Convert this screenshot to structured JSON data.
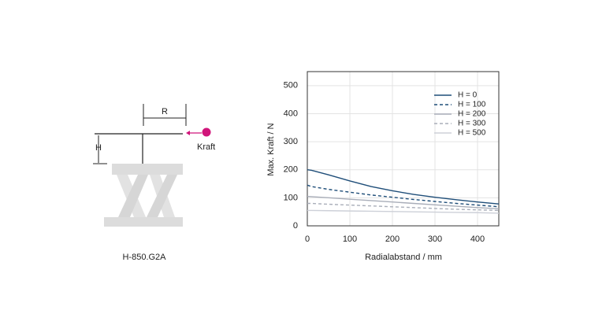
{
  "diagram": {
    "r_label": "R",
    "h_label": "H",
    "force_label": "Kraft",
    "caption": "H-850.G2A"
  },
  "chart_data": {
    "type": "line",
    "y_label": "Max. Kraft / N",
    "x_label": "Radialabstand / mm",
    "x": [
      0,
      10,
      50,
      100,
      150,
      200,
      250,
      300,
      350,
      400,
      450
    ],
    "series": [
      {
        "name": "H = 0",
        "color": "#1f4e79",
        "dash": false,
        "values": [
          200,
          198,
          182,
          160,
          140,
          125,
          112,
          102,
          93,
          85,
          78
        ]
      },
      {
        "name": "H = 100",
        "color": "#1f4e79",
        "dash": true,
        "values": [
          145,
          140,
          130,
          120,
          110,
          102,
          94,
          87,
          80,
          74,
          68
        ]
      },
      {
        "name": "H = 200",
        "color": "#a9aeb9",
        "dash": false,
        "values": [
          105,
          104,
          100,
          95,
          90,
          85,
          80,
          75,
          70,
          65,
          61
        ]
      },
      {
        "name": "H = 300",
        "color": "#a9aeb9",
        "dash": true,
        "values": [
          80,
          80,
          77,
          74,
          71,
          68,
          65,
          62,
          59,
          57,
          55
        ]
      },
      {
        "name": "H = 500",
        "color": "#cdd0d8",
        "dash": false,
        "values": [
          55,
          55,
          54,
          53,
          52,
          51,
          50,
          49,
          48,
          47,
          45
        ]
      }
    ],
    "xlim": [
      0,
      450
    ],
    "xticks": [
      0,
      100,
      200,
      300,
      400
    ],
    "ylim": [
      0,
      550
    ],
    "yticks": [
      0,
      100,
      200,
      300,
      400,
      500
    ],
    "grid": true,
    "legend": "top-right"
  }
}
